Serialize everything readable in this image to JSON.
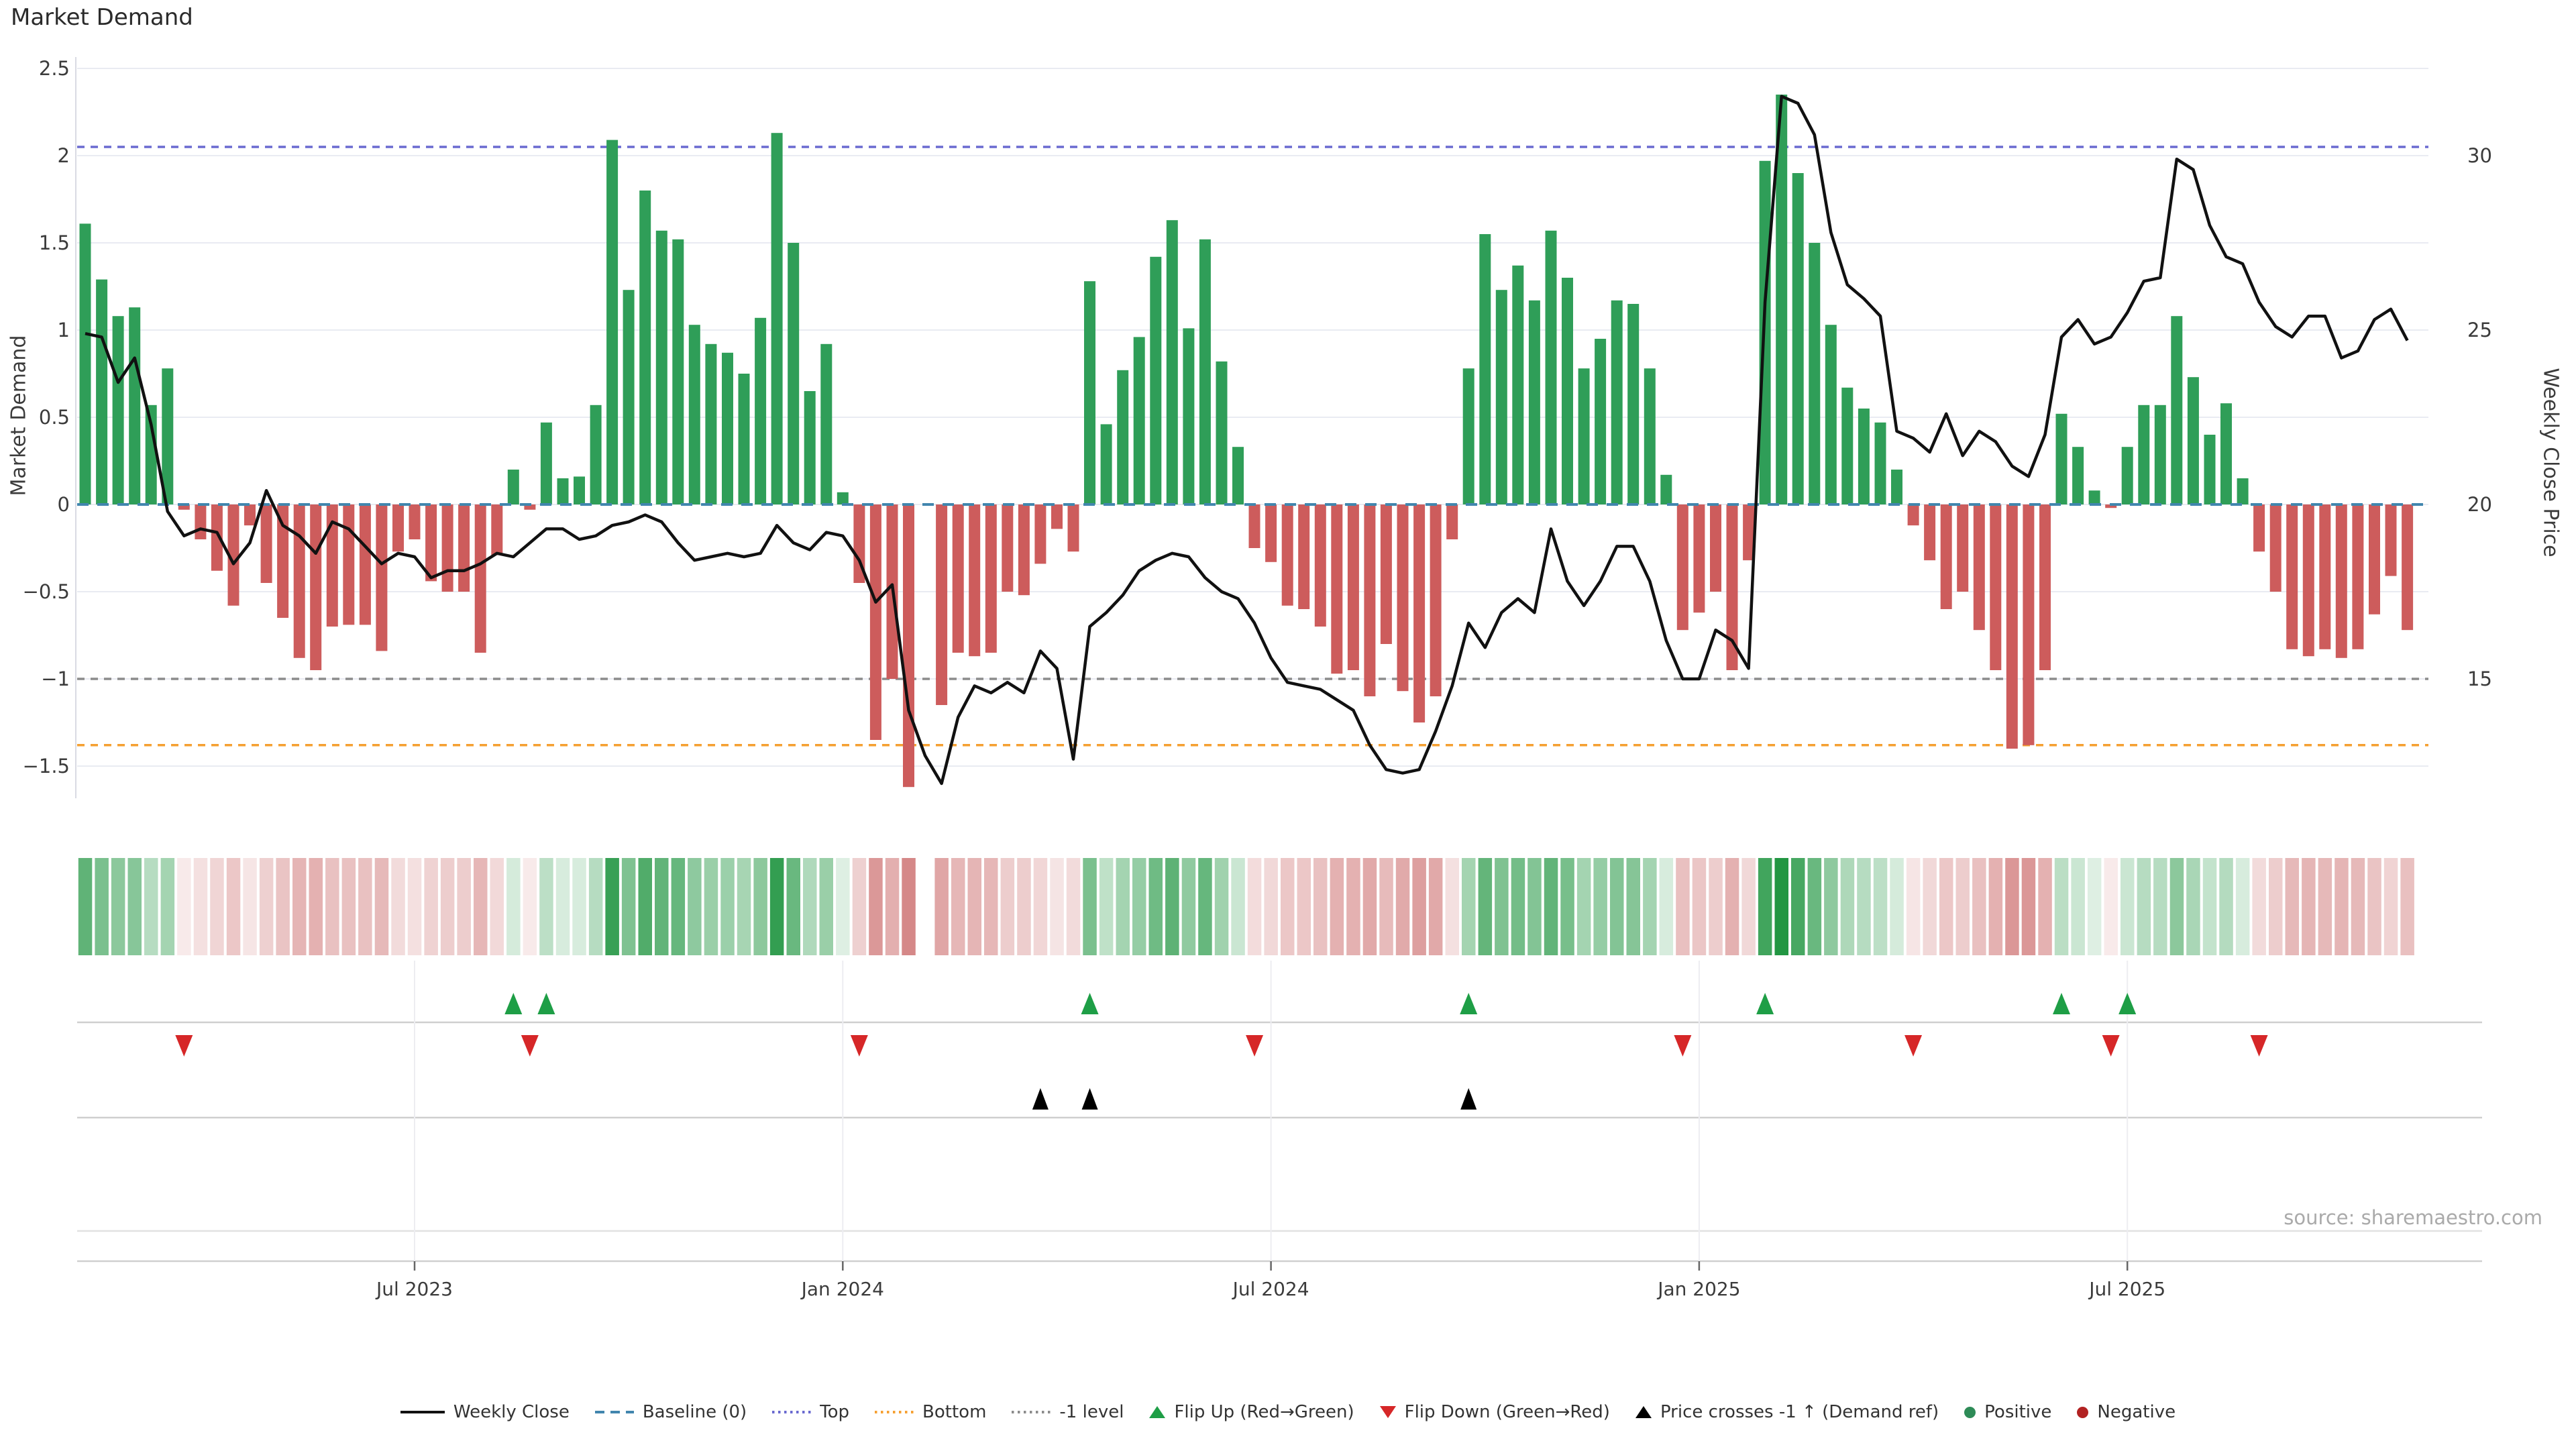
{
  "title": "Market Demand",
  "source": "source: sharemaestro.com",
  "colors": {
    "positive": "#2f9e58",
    "negative": "#cd5c5c",
    "price_line": "#111111",
    "baseline": "#4186ae",
    "top": "#6a6ad0",
    "bottom": "#f5a032",
    "minus1": "#8c8c8c",
    "flip_up": "#1e9e46",
    "flip_down": "#d62728",
    "price_cross": "#000000",
    "grid": "#e9ebf2",
    "text": "#3b3b3b"
  },
  "chart_data": {
    "type": "bar+line combo with heatmap strip and event-marker rows, weekly frequency",
    "title": "Market Demand",
    "left_axis": {
      "label": "Market Demand",
      "range": [
        -1.75,
        2.6
      ],
      "ticks": [
        {
          "label": "2.5",
          "value": 2.5
        },
        {
          "label": "2",
          "value": 2
        },
        {
          "label": "1.5",
          "value": 1.5
        },
        {
          "label": "1",
          "value": 1
        },
        {
          "label": "0.5",
          "value": 0.5
        },
        {
          "label": "0",
          "value": 0
        },
        {
          "label": "−0.5",
          "value": -0.5
        },
        {
          "label": "−1",
          "value": -1
        },
        {
          "label": "−1.5",
          "value": -1.5
        }
      ]
    },
    "right_axis": {
      "label": "Weekly Close Price",
      "ticks": [
        {
          "label": "30",
          "value": 30
        },
        {
          "label": "25",
          "value": 25
        },
        {
          "label": "20",
          "value": 20
        },
        {
          "label": "15",
          "value": 15
        }
      ]
    },
    "x_axis": {
      "ticks": [
        {
          "label": "Jul 2023",
          "week": 20
        },
        {
          "label": "Jan 2024",
          "week": 46
        },
        {
          "label": "Jul 2024",
          "week": 72
        },
        {
          "label": "Jan 2025",
          "week": 98
        },
        {
          "label": "Jul 2025",
          "week": 124
        }
      ]
    },
    "ref_lines": {
      "baseline": 0,
      "top": 2.05,
      "bottom": -1.38,
      "minus1": -1.0
    },
    "series": {
      "demand": [
        1.61,
        1.29,
        1.08,
        1.13,
        0.57,
        0.78,
        -0.03,
        -0.2,
        -0.38,
        -0.58,
        -0.12,
        -0.45,
        -0.65,
        -0.88,
        -0.95,
        -0.7,
        -0.69,
        -0.69,
        -0.84,
        -0.27,
        -0.2,
        -0.44,
        -0.5,
        -0.5,
        -0.85,
        -0.29,
        0.2,
        -0.03,
        0.47,
        0.15,
        0.16,
        0.57,
        2.09,
        1.23,
        1.8,
        1.57,
        1.52,
        1.03,
        0.92,
        0.87,
        0.75,
        1.07,
        2.13,
        1.5,
        0.65,
        0.92,
        0.07,
        -0.45,
        -1.35,
        -1.0,
        -1.62,
        null,
        -1.15,
        -0.85,
        -0.87,
        -0.85,
        -0.5,
        -0.52,
        -0.34,
        -0.14,
        -0.27,
        1.28,
        0.46,
        0.77,
        0.96,
        1.42,
        1.63,
        1.01,
        1.52,
        0.82,
        0.33,
        -0.25,
        -0.33,
        -0.58,
        -0.6,
        -0.7,
        -0.97,
        -0.95,
        -1.1,
        -0.8,
        -1.07,
        -1.25,
        -1.1,
        -0.2,
        0.78,
        1.55,
        1.23,
        1.37,
        1.17,
        1.57,
        1.3,
        0.78,
        0.95,
        1.17,
        1.15,
        0.78,
        0.17,
        -0.72,
        -0.62,
        -0.5,
        -0.95,
        -0.32,
        1.97,
        2.35,
        1.9,
        1.5,
        1.03,
        0.67,
        0.55,
        0.47,
        0.2,
        -0.12,
        -0.32,
        -0.6,
        -0.5,
        -0.72,
        -0.95,
        -1.4,
        -1.38,
        -0.95,
        0.52,
        0.33,
        0.08,
        -0.02,
        0.33,
        0.57,
        0.57,
        1.08,
        0.73,
        0.4,
        0.58,
        0.15,
        -0.27,
        -0.5,
        -0.83,
        -0.87,
        -0.83,
        -0.88,
        -0.83,
        -0.63,
        -0.41,
        -0.72
      ],
      "price": [
        24.9,
        24.8,
        23.5,
        24.2,
        22.3,
        19.8,
        19.1,
        19.3,
        19.2,
        18.3,
        18.9,
        20.4,
        19.4,
        19.1,
        18.6,
        19.5,
        19.3,
        18.8,
        18.3,
        18.6,
        18.5,
        17.9,
        18.1,
        18.1,
        18.3,
        18.6,
        18.5,
        18.9,
        19.3,
        19.3,
        19.0,
        19.1,
        19.4,
        19.5,
        19.7,
        19.5,
        18.9,
        18.4,
        18.5,
        18.6,
        18.5,
        18.6,
        19.4,
        18.9,
        18.7,
        19.2,
        19.1,
        18.4,
        17.2,
        17.7,
        14.1,
        12.8,
        12.0,
        13.9,
        14.8,
        14.6,
        14.9,
        14.6,
        15.8,
        15.3,
        12.7,
        16.5,
        16.9,
        17.4,
        18.1,
        18.4,
        18.6,
        18.5,
        17.9,
        17.5,
        17.3,
        16.6,
        15.6,
        14.9,
        14.8,
        14.7,
        14.4,
        14.1,
        13.1,
        12.4,
        12.3,
        12.4,
        13.5,
        14.8,
        16.6,
        15.9,
        16.9,
        17.3,
        16.9,
        19.3,
        17.8,
        17.1,
        17.8,
        18.8,
        18.8,
        17.8,
        16.1,
        15.0,
        15.0,
        16.4,
        16.1,
        15.3,
        25.8,
        31.7,
        31.5,
        30.6,
        27.8,
        26.3,
        25.9,
        25.4,
        22.1,
        21.9,
        21.5,
        22.6,
        21.4,
        22.1,
        21.8,
        21.1,
        20.8,
        22.0,
        24.8,
        25.3,
        24.6,
        24.8,
        25.5,
        26.4,
        26.5,
        29.9,
        29.6,
        28.0,
        27.1,
        26.9,
        25.8,
        25.1,
        24.8,
        25.4,
        25.4,
        24.2,
        24.4,
        25.3,
        25.6,
        24.7
      ]
    },
    "markers": {
      "flip_up": [
        26,
        28,
        61,
        84,
        102,
        120,
        124
      ],
      "flip_down": [
        6,
        27,
        47,
        71,
        97,
        111,
        123,
        132
      ],
      "price_cross_up": [
        58,
        61,
        84
      ]
    },
    "heatmap": "strip encodes weekly demand values (green positive / red negative, intensity = magnitude)"
  },
  "legend": [
    {
      "label": "Weekly Close",
      "swatch": "line",
      "color": "#111111"
    },
    {
      "label": "Baseline (0)",
      "swatch": "dashes",
      "color": "#4186ae"
    },
    {
      "label": "Top",
      "swatch": "dots",
      "color": "#6a6ad0"
    },
    {
      "label": "Bottom",
      "swatch": "dots",
      "color": "#f5a032"
    },
    {
      "label": "-1 level",
      "swatch": "dots",
      "color": "#8c8c8c"
    },
    {
      "label": "Flip Up (Red→Green)",
      "swatch": "triangle-up",
      "color": "#1e9e46"
    },
    {
      "label": "Flip Down (Green→Red)",
      "swatch": "triangle-down",
      "color": "#d62728"
    },
    {
      "label": "Price crosses -1 ↑ (Demand ref)",
      "swatch": "triangle-up",
      "color": "#000000"
    },
    {
      "label": "Positive",
      "swatch": "circle",
      "color": "#2e8b57"
    },
    {
      "label": "Negative",
      "swatch": "circle",
      "color": "#b22222"
    }
  ]
}
